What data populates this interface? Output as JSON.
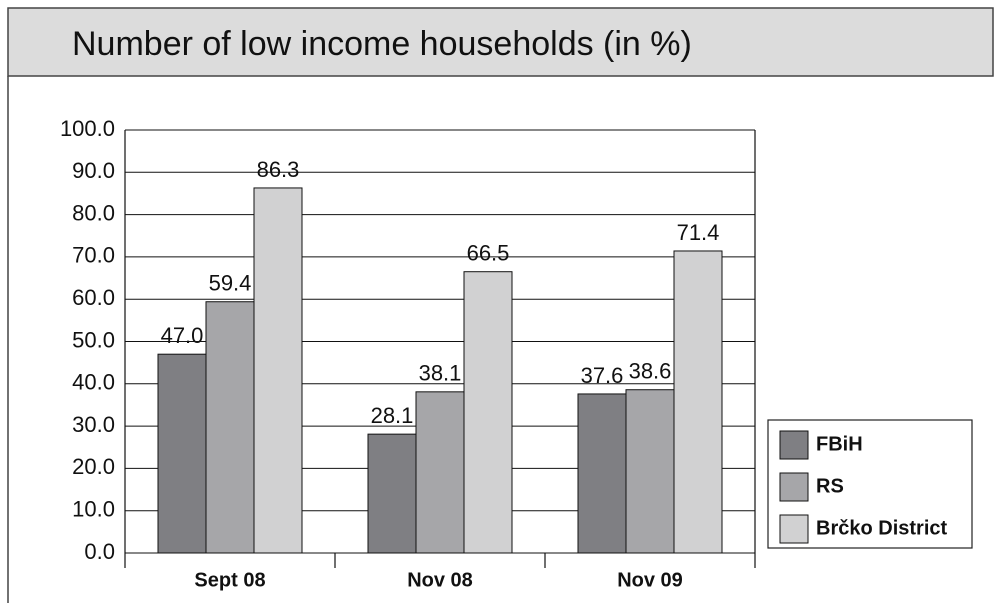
{
  "chart_data": {
    "type": "bar",
    "title": "Number of low income households (in %)",
    "categories": [
      "Sept 08",
      "Nov 08",
      "Nov 09"
    ],
    "series": [
      {
        "name": "FBiH",
        "color": "#7f7f83",
        "values": [
          47.0,
          28.1,
          37.6
        ],
        "value_labels": [
          "47.0",
          "28.1",
          "37.6"
        ]
      },
      {
        "name": "RS",
        "color": "#a6a6a9",
        "values": [
          59.4,
          38.1,
          38.6
        ],
        "value_labels": [
          "59.4",
          "38.1",
          "38.6"
        ]
      },
      {
        "name": "Brčko District",
        "color": "#d1d1d2",
        "values": [
          86.3,
          66.5,
          71.4
        ],
        "value_labels": [
          "86.3",
          "66.5",
          "71.4"
        ]
      }
    ],
    "ylim": [
      0,
      100
    ],
    "yticks": [
      {
        "value": 0,
        "label": "0.0"
      },
      {
        "value": 10,
        "label": "10.0"
      },
      {
        "value": 20,
        "label": "20.0"
      },
      {
        "value": 30,
        "label": "30.0"
      },
      {
        "value": 40,
        "label": "40.0"
      },
      {
        "value": 50,
        "label": "50.0"
      },
      {
        "value": 60,
        "label": "60.0"
      },
      {
        "value": 70,
        "label": "70.0"
      },
      {
        "value": 80,
        "label": "80.0"
      },
      {
        "value": 90,
        "label": "90.0"
      },
      {
        "value": 100,
        "label": "100.0"
      }
    ],
    "grid": true,
    "legend": "right"
  }
}
